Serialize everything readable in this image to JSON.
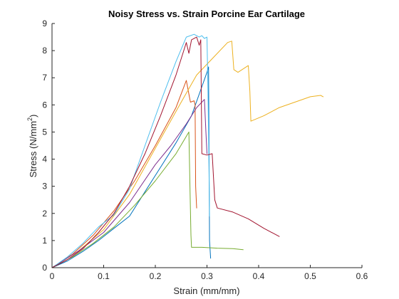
{
  "chart_data": {
    "type": "line",
    "title": "Noisy Stress vs. Strain Porcine Ear Cartilage",
    "xlabel": "Strain (mm/mm)",
    "ylabel_main": "Stress (N/mm",
    "ylabel_sup": "2",
    "ylabel_end": ")",
    "xlim": [
      0,
      0.6
    ],
    "ylim": [
      0,
      9
    ],
    "xticks": [
      "0",
      "0.1",
      "0.2",
      "0.3",
      "0.4",
      "0.5",
      "0.6"
    ],
    "yticks": [
      "0",
      "1",
      "2",
      "3",
      "4",
      "5",
      "6",
      "7",
      "8",
      "9"
    ],
    "grid": false,
    "series": [
      {
        "color": "#0072BD",
        "x": [
          0,
          0.03,
          0.06,
          0.09,
          0.12,
          0.15,
          0.18,
          0.21,
          0.24,
          0.27,
          0.3,
          0.303,
          0.305,
          0.307
        ],
        "y": [
          0,
          0.25,
          0.6,
          1.0,
          1.45,
          1.9,
          2.8,
          3.7,
          4.6,
          5.6,
          7.2,
          7.4,
          1.0,
          0.35
        ]
      },
      {
        "color": "#D95319",
        "x": [
          0,
          0.04,
          0.08,
          0.12,
          0.16,
          0.2,
          0.24,
          0.26,
          0.265,
          0.268,
          0.275,
          0.277,
          0.278,
          0.28
        ],
        "y": [
          0,
          0.5,
          1.2,
          2.1,
          3.2,
          4.5,
          5.9,
          6.9,
          6.4,
          6.1,
          6.15,
          6.0,
          3.0,
          2.2
        ]
      },
      {
        "color": "#EDB120",
        "x": [
          0,
          0.05,
          0.1,
          0.15,
          0.2,
          0.25,
          0.28,
          0.31,
          0.34,
          0.348,
          0.352,
          0.36,
          0.38,
          0.383,
          0.385,
          0.41,
          0.44,
          0.47,
          0.5,
          0.52,
          0.525
        ],
        "y": [
          0,
          0.6,
          1.4,
          2.7,
          4.4,
          6.1,
          7.1,
          7.7,
          8.3,
          8.35,
          7.3,
          7.2,
          7.45,
          6.5,
          5.4,
          5.6,
          5.9,
          6.1,
          6.3,
          6.35,
          6.3
        ]
      },
      {
        "color": "#7E2F8E",
        "x": [
          0,
          0.05,
          0.1,
          0.15,
          0.2,
          0.23,
          0.26,
          0.28,
          0.295,
          0.298,
          0.3
        ],
        "y": [
          0,
          0.6,
          1.3,
          2.4,
          3.8,
          4.5,
          5.3,
          5.9,
          6.2,
          5.0,
          4.2
        ]
      },
      {
        "color": "#77AC30",
        "x": [
          0,
          0.04,
          0.08,
          0.12,
          0.16,
          0.2,
          0.24,
          0.265,
          0.267,
          0.269,
          0.27,
          0.29,
          0.32,
          0.35,
          0.37
        ],
        "y": [
          0,
          0.4,
          0.9,
          1.5,
          2.3,
          3.2,
          4.2,
          5.0,
          3.0,
          1.2,
          0.75,
          0.75,
          0.72,
          0.7,
          0.66
        ]
      },
      {
        "color": "#4DBEEE",
        "x": [
          0,
          0.03,
          0.06,
          0.09,
          0.12,
          0.15,
          0.18,
          0.21,
          0.24,
          0.26,
          0.275,
          0.285,
          0.29,
          0.295,
          0.3,
          0.302,
          0.304,
          0.305
        ],
        "y": [
          0,
          0.4,
          0.9,
          1.5,
          1.95,
          2.9,
          4.5,
          6.1,
          7.6,
          8.5,
          8.6,
          8.5,
          8.55,
          8.45,
          8.5,
          6.5,
          3.5,
          1.9
        ]
      },
      {
        "color": "#A2142F",
        "x": [
          0,
          0.03,
          0.06,
          0.09,
          0.12,
          0.15,
          0.18,
          0.21,
          0.24,
          0.255,
          0.26,
          0.265,
          0.27,
          0.28,
          0.285,
          0.288,
          0.29,
          0.3,
          0.31,
          0.315,
          0.32,
          0.35,
          0.38,
          0.41,
          0.44
        ],
        "y": [
          0,
          0.3,
          0.7,
          1.3,
          2.0,
          3.0,
          4.2,
          5.6,
          7.1,
          8.0,
          8.3,
          7.9,
          8.4,
          8.5,
          8.2,
          8.4,
          4.2,
          4.15,
          4.2,
          2.5,
          2.2,
          2.05,
          1.8,
          1.45,
          1.15
        ]
      }
    ]
  }
}
